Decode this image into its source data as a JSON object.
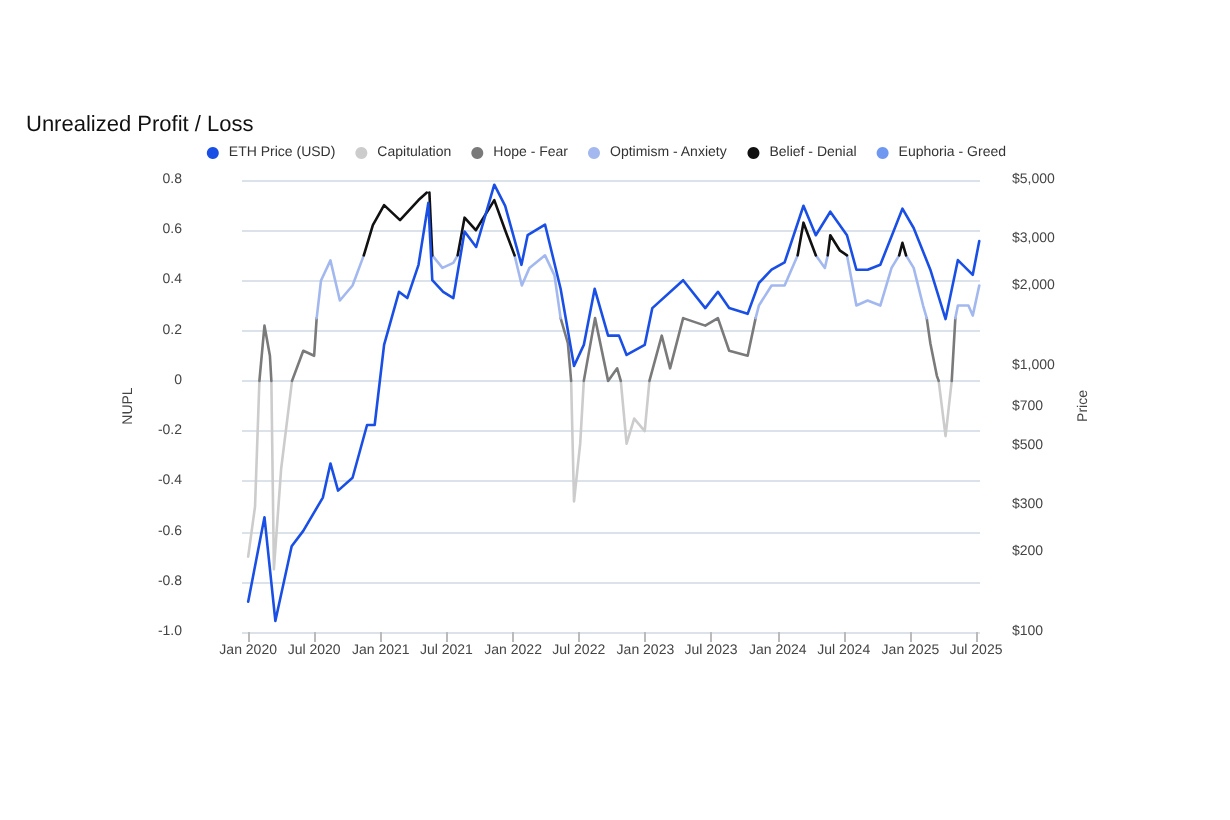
{
  "chart_data": {
    "type": "line",
    "title": "Unrealized Profit / Loss",
    "ylabel": "NUPL",
    "y2label": "Price",
    "xlim": [
      "2019-12-15",
      "2025-07-12"
    ],
    "xticks": [
      {
        "value": "2020-01-01",
        "label": "Jan 2020"
      },
      {
        "value": "2020-07-01",
        "label": "Jul 2020"
      },
      {
        "value": "2021-01-01",
        "label": "Jan 2021"
      },
      {
        "value": "2021-07-01",
        "label": "Jul 2021"
      },
      {
        "value": "2022-01-01",
        "label": "Jan 2022"
      },
      {
        "value": "2022-07-01",
        "label": "Jul 2022"
      },
      {
        "value": "2023-01-01",
        "label": "Jan 2023"
      },
      {
        "value": "2023-07-01",
        "label": "Jul 2023"
      },
      {
        "value": "2024-01-01",
        "label": "Jan 2024"
      },
      {
        "value": "2024-07-01",
        "label": "Jul 2024"
      },
      {
        "value": "2025-01-01",
        "label": "Jan 2025"
      },
      {
        "value": "2025-07-01",
        "label": "Jul 2025"
      }
    ],
    "ylim": [
      -1,
      0.8
    ],
    "yticks": [
      0.8,
      0.6,
      0.4,
      0.2,
      0,
      -0.2,
      -0.4,
      -0.6,
      -0.8,
      {
        "value": -1,
        "label": "-1.0"
      }
    ],
    "y2lim": [
      100,
      5000
    ],
    "y2ticks": [
      {
        "value": 100,
        "label": "$100"
      },
      {
        "value": 200,
        "label": "$200"
      },
      {
        "value": 300,
        "label": "$300"
      },
      {
        "value": 500,
        "label": "$500"
      },
      {
        "value": 700,
        "label": "$700"
      },
      {
        "value": 1000,
        "label": "$1,000"
      },
      {
        "value": 2000,
        "label": "$2,000"
      },
      {
        "value": 3000,
        "label": "$3,000"
      },
      {
        "value": 5000,
        "label": "$5,000"
      }
    ],
    "log": "y2",
    "grid": "y",
    "legend": "top right",
    "marker": "none",
    "line_style": "solid",
    "series": [
      {
        "name": "ETH Price (USD)",
        "color": "#1a4fe6",
        "axis": "y2",
        "x": [
          "2020-01-01",
          "2020-02-15",
          "2020-03-16",
          "2020-04-30",
          "2020-06-01",
          "2020-07-25",
          "2020-08-15",
          "2020-09-05",
          "2020-10-15",
          "2020-11-24",
          "2020-12-15",
          "2021-01-10",
          "2021-02-20",
          "2021-03-15",
          "2021-04-15",
          "2021-05-12",
          "2021-05-23",
          "2021-06-22",
          "2021-07-20",
          "2021-08-20",
          "2021-09-21",
          "2021-11-10",
          "2021-12-10",
          "2022-01-24",
          "2022-02-10",
          "2022-03-30",
          "2022-05-12",
          "2022-06-18",
          "2022-07-15",
          "2022-08-14",
          "2022-09-20",
          "2022-10-20",
          "2022-11-10",
          "2022-12-30",
          "2023-01-20",
          "2023-04-15",
          "2023-06-15",
          "2023-07-20",
          "2023-08-20",
          "2023-10-10",
          "2023-11-10",
          "2023-12-15",
          "2024-01-20",
          "2024-03-12",
          "2024-04-15",
          "2024-05-25",
          "2024-07-10",
          "2024-08-05",
          "2024-09-05",
          "2024-10-10",
          "2024-12-10",
          "2025-01-10",
          "2025-02-25",
          "2025-04-08",
          "2025-05-12",
          "2025-06-22",
          "2025-07-10"
        ],
        "values": [
          130,
          270,
          110,
          210,
          240,
          320,
          430,
          340,
          380,
          600,
          600,
          1200,
          1900,
          1800,
          2400,
          4100,
          2100,
          1900,
          1800,
          3200,
          2800,
          4800,
          4000,
          2400,
          3100,
          3400,
          1950,
          1000,
          1200,
          1950,
          1300,
          1300,
          1100,
          1200,
          1650,
          2100,
          1650,
          1900,
          1650,
          1570,
          2050,
          2300,
          2450,
          4000,
          3100,
          3800,
          3100,
          2300,
          2300,
          2400,
          3900,
          3300,
          2300,
          1500,
          2500,
          2200,
          2950
        ]
      },
      {
        "name": "Capitulation",
        "color": "#cccccc",
        "x": [
          "2020-01-01",
          "2020-01-20",
          "2020-02-01",
          "2020-02-02",
          "2020-03-05",
          "2020-03-12",
          "2020-04-01",
          "2020-05-01",
          "2020-05-02",
          "2022-06-10",
          "2022-06-18",
          "2022-07-05",
          "2022-07-15",
          "2022-07-16",
          "2022-10-25",
          "2022-11-10",
          "2022-12-01",
          "2022-12-30",
          "2023-01-12",
          "2023-01-13",
          "2025-03-20",
          "2025-04-08",
          "2025-04-25"
        ],
        "values": [
          -0.7,
          -0.5,
          0,
          null,
          0,
          -0.75,
          -0.35,
          0,
          null,
          0,
          -0.48,
          -0.25,
          0,
          null,
          0,
          -0.25,
          -0.15,
          -0.2,
          0,
          null,
          0,
          -0.22,
          0
        ]
      },
      {
        "name": "Hope - Fear",
        "color": "#7a7a7a",
        "x": [
          "2020-02-01",
          "2020-02-15",
          "2020-03-01",
          "2020-03-05",
          "2020-03-06",
          "2020-05-01",
          "2020-06-01",
          "2020-07-01",
          "2020-07-08",
          "2020-07-09",
          "2022-05-12",
          "2022-06-01",
          "2022-06-10",
          "2022-06-11",
          "2022-07-15",
          "2022-08-15",
          "2022-09-20",
          "2022-10-15",
          "2022-10-25",
          "2022-10-26",
          "2023-01-12",
          "2023-02-15",
          "2023-03-10",
          "2023-04-15",
          "2023-06-15",
          "2023-07-20",
          "2023-08-20",
          "2023-10-10",
          "2023-11-01",
          "2023-11-02",
          "2025-02-15",
          "2025-02-25",
          "2025-03-15",
          "2025-03-20",
          "2025-03-21",
          "2025-04-25",
          "2025-05-05"
        ],
        "values": [
          0,
          0.22,
          0.1,
          0,
          null,
          0,
          0.12,
          0.1,
          0.25,
          null,
          0.25,
          0.15,
          0,
          null,
          0,
          0.25,
          0,
          0.05,
          0,
          null,
          0,
          0.18,
          0.05,
          0.25,
          0.22,
          0.25,
          0.12,
          0.1,
          0.25,
          null,
          0.25,
          0.15,
          0.02,
          0,
          null,
          0,
          0.25
        ]
      },
      {
        "name": "Optimism - Anxiety",
        "color": "#a3b8ef",
        "x": [
          "2020-07-08",
          "2020-07-20",
          "2020-08-15",
          "2020-09-10",
          "2020-10-15",
          "2020-11-15",
          "2020-11-16",
          "2021-05-23",
          "2021-06-20",
          "2021-07-20",
          "2021-08-01",
          "2021-08-02",
          "2022-01-05",
          "2022-01-25",
          "2022-02-15",
          "2022-03-30",
          "2022-04-25",
          "2022-05-12",
          "2022-05-13",
          "2023-11-01",
          "2023-11-10",
          "2023-12-15",
          "2024-01-20",
          "2024-02-25",
          "2024-02-26",
          "2024-04-15",
          "2024-05-10",
          "2024-05-18",
          "2024-05-19",
          "2024-07-10",
          "2024-08-05",
          "2024-09-05",
          "2024-10-10",
          "2024-11-10",
          "2024-12-01",
          "2024-12-02",
          "2024-12-20",
          "2025-01-10",
          "2025-02-05",
          "2025-02-15",
          "2025-02-16",
          "2025-05-05",
          "2025-05-12",
          "2025-06-10",
          "2025-06-22",
          "2025-07-10"
        ],
        "values": [
          0.25,
          0.4,
          0.48,
          0.32,
          0.38,
          0.5,
          null,
          0.5,
          0.45,
          0.47,
          0.5,
          null,
          0.5,
          0.38,
          0.45,
          0.5,
          0.42,
          0.25,
          null,
          0.25,
          0.3,
          0.38,
          0.38,
          0.5,
          null,
          0.5,
          0.45,
          0.5,
          null,
          0.5,
          0.3,
          0.32,
          0.3,
          0.45,
          0.5,
          null,
          0.5,
          0.45,
          0.3,
          0.25,
          null,
          0.25,
          0.3,
          0.3,
          0.26,
          0.38
        ]
      },
      {
        "name": "Belief - Denial",
        "color": "#111111",
        "x": [
          "2020-11-15",
          "2020-12-10",
          "2021-01-10",
          "2021-02-23",
          "2021-04-15",
          "2021-05-08",
          "2021-05-09",
          "2021-05-15",
          "2021-05-23",
          "2021-05-24",
          "2021-08-01",
          "2021-08-20",
          "2021-09-20",
          "2021-11-10",
          "2021-12-10",
          "2022-01-05",
          "2022-01-06",
          "2024-02-25",
          "2024-03-12",
          "2024-04-15",
          "2024-04-16",
          "2024-05-18",
          "2024-05-25",
          "2024-06-20",
          "2024-07-10",
          "2024-07-11",
          "2024-12-01",
          "2024-12-10",
          "2024-12-20"
        ],
        "values": [
          0.5,
          0.62,
          0.7,
          0.64,
          0.72,
          0.75,
          null,
          0.75,
          0.5,
          null,
          0.5,
          0.65,
          0.6,
          0.72,
          0.6,
          0.5,
          null,
          0.5,
          0.63,
          0.5,
          null,
          0.5,
          0.58,
          0.52,
          0.5,
          null,
          0.5,
          0.55,
          0.5
        ]
      },
      {
        "name": "Euphoria - Greed",
        "color": "#6f98f0"
      }
    ]
  }
}
